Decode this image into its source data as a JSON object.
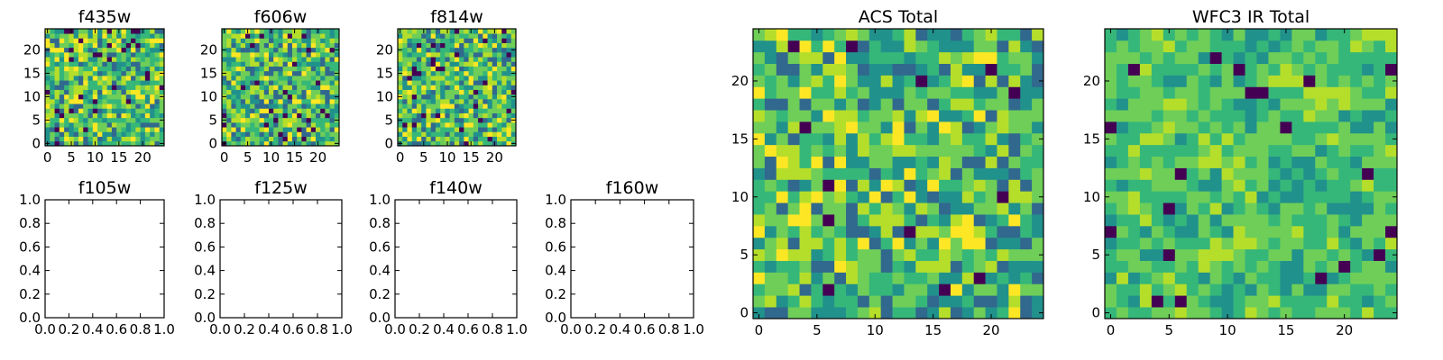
{
  "figure": {
    "palette": [
      "#440154",
      "#31688e",
      "#21918c",
      "#35b779",
      "#6ece58",
      "#b5de2b",
      "#fde725"
    ]
  },
  "chart_data": [
    {
      "type": "heatmap",
      "title": "f435w",
      "grid": 25,
      "xlim": [
        -0.5,
        24.5
      ],
      "ylim": [
        -0.5,
        24.5
      ],
      "xticks": [
        0,
        5,
        10,
        15,
        20
      ],
      "yticks": [
        0,
        5,
        10,
        15,
        20
      ],
      "seed": 11,
      "smooth": 0,
      "dark_frac": 0.05
    },
    {
      "type": "heatmap",
      "title": "f606w",
      "grid": 25,
      "xlim": [
        -0.5,
        24.5
      ],
      "ylim": [
        -0.5,
        24.5
      ],
      "xticks": [
        0,
        5,
        10,
        15,
        20
      ],
      "yticks": [
        0,
        5,
        10,
        15,
        20
      ],
      "seed": 23,
      "smooth": 0,
      "dark_frac": 0.04
    },
    {
      "type": "heatmap",
      "title": "f814w",
      "grid": 25,
      "xlim": [
        -0.5,
        24.5
      ],
      "ylim": [
        -0.5,
        24.5
      ],
      "xticks": [
        0,
        5,
        10,
        15,
        20
      ],
      "yticks": [
        0,
        5,
        10,
        15,
        20
      ],
      "seed": 37,
      "smooth": 0,
      "dark_frac": 0.05
    },
    {
      "type": "empty",
      "title": "f105w",
      "xlim": [
        0,
        1
      ],
      "ylim": [
        0,
        1
      ],
      "xticks": [
        "0.0",
        "0.2",
        "0.4",
        "0.6",
        "0.8",
        "1.0"
      ],
      "yticks": [
        "0.0",
        "0.2",
        "0.4",
        "0.6",
        "0.8",
        "1.0"
      ]
    },
    {
      "type": "empty",
      "title": "f125w",
      "xlim": [
        0,
        1
      ],
      "ylim": [
        0,
        1
      ],
      "xticks": [
        "0.0",
        "0.2",
        "0.4",
        "0.6",
        "0.8",
        "1.0"
      ],
      "yticks": [
        "0.0",
        "0.2",
        "0.4",
        "0.6",
        "0.8",
        "1.0"
      ]
    },
    {
      "type": "empty",
      "title": "f140w",
      "xlim": [
        0,
        1
      ],
      "ylim": [
        0,
        1
      ],
      "xticks": [
        "0.0",
        "0.2",
        "0.4",
        "0.6",
        "0.8",
        "1.0"
      ],
      "yticks": [
        "0.0",
        "0.2",
        "0.4",
        "0.6",
        "0.8",
        "1.0"
      ]
    },
    {
      "type": "empty",
      "title": "f160w",
      "xlim": [
        0,
        1
      ],
      "ylim": [
        0,
        1
      ],
      "xticks": [
        "0.0",
        "0.2",
        "0.4",
        "0.6",
        "0.8",
        "1.0"
      ],
      "yticks": [
        "0.0",
        "0.2",
        "0.4",
        "0.6",
        "0.8",
        "1.0"
      ]
    },
    {
      "type": "heatmap",
      "title": "ACS Total",
      "grid": 25,
      "xlim": [
        -0.5,
        24.5
      ],
      "ylim": [
        -0.5,
        24.5
      ],
      "xticks": [
        0,
        5,
        10,
        15,
        20
      ],
      "yticks": [
        0,
        5,
        10,
        15,
        20
      ],
      "seed": 53,
      "smooth": 0,
      "dark_frac": 0.03
    },
    {
      "type": "heatmap",
      "title": "WFC3 IR Total",
      "grid": 25,
      "xlim": [
        -0.5,
        24.5
      ],
      "ylim": [
        -0.5,
        24.5
      ],
      "xticks": [
        0,
        5,
        10,
        15,
        20
      ],
      "yticks": [
        0,
        5,
        10,
        15,
        20
      ],
      "seed": 71,
      "smooth": 1,
      "dark_frac": 0.03
    }
  ]
}
